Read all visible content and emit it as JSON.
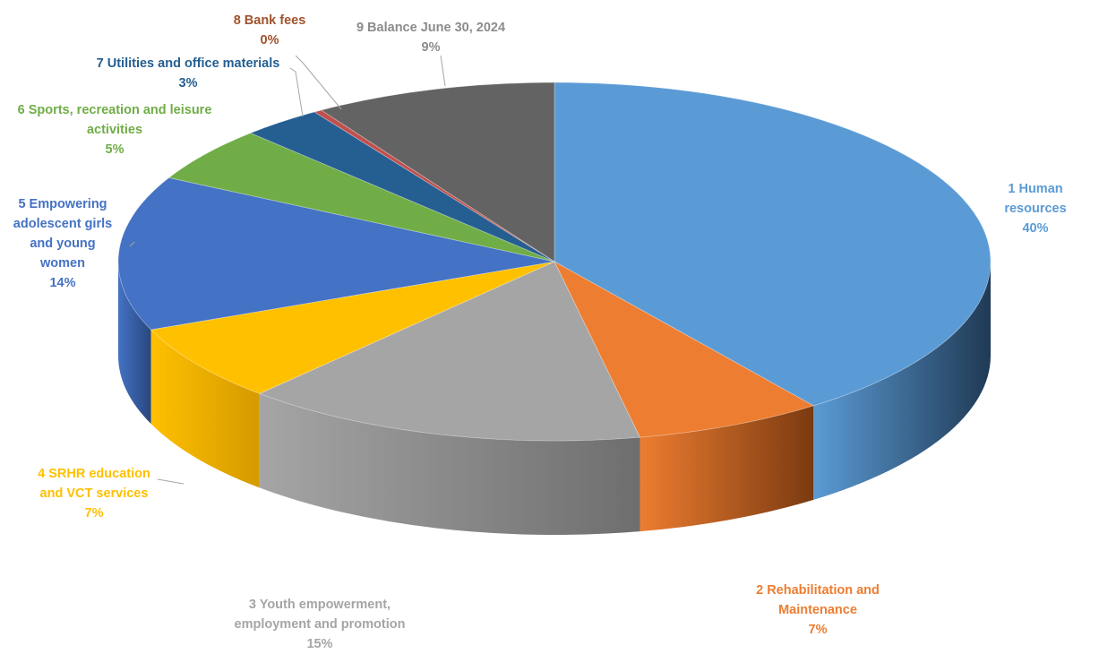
{
  "chart_data": {
    "type": "pie",
    "title": "",
    "slices": [
      {
        "label": "1 Human resources",
        "percent_label": "40%",
        "value": 40,
        "color": "#5B9BD5",
        "side": "#203A55"
      },
      {
        "label": "2 Rehabilitation and\nMaintenance",
        "percent_label": "7%",
        "value": 7,
        "color": "#ED7D31",
        "side": "#7A3A10"
      },
      {
        "label": "3 Youth empowerment,\nemployment and promotion",
        "percent_label": "15%",
        "value": 15,
        "color": "#A5A5A5",
        "side": "#6E6E6E"
      },
      {
        "label": "4 SRHR education\nand  VCT services",
        "percent_label": "7%",
        "value": 7,
        "color": "#FFC000",
        "side": "#D49A00"
      },
      {
        "label": "5 Empowering\nadolescent girls\nand young\nwomen",
        "percent_label": "14%",
        "value": 14,
        "color": "#4472C4",
        "side": "#28477F"
      },
      {
        "label": "6 Sports, recreation and leisure\nactivities",
        "percent_label": "5%",
        "value": 5,
        "color": "#70AD47",
        "side": "#3E6A23"
      },
      {
        "label": "7 Utilities and office materials",
        "percent_label": "3%",
        "value": 3,
        "color": "#255E91",
        "side": "#153A5C"
      },
      {
        "label": "8 Bank fees",
        "percent_label": "0%",
        "value": 0.3,
        "color": "#C0504D",
        "side": "#7E2B29"
      },
      {
        "label": "9 Balance June 30, 2024",
        "percent_label": "9%",
        "value": 9,
        "color": "#636363",
        "side": "#3A3A3A"
      }
    ],
    "label_colors": [
      "#5B9BD5",
      "#ED7D31",
      "#A5A5A5",
      "#FFC000",
      "#4472C4",
      "#70AD47",
      "#255E91",
      "#A0522D",
      "#8C8C8C"
    ],
    "legend": "none"
  }
}
